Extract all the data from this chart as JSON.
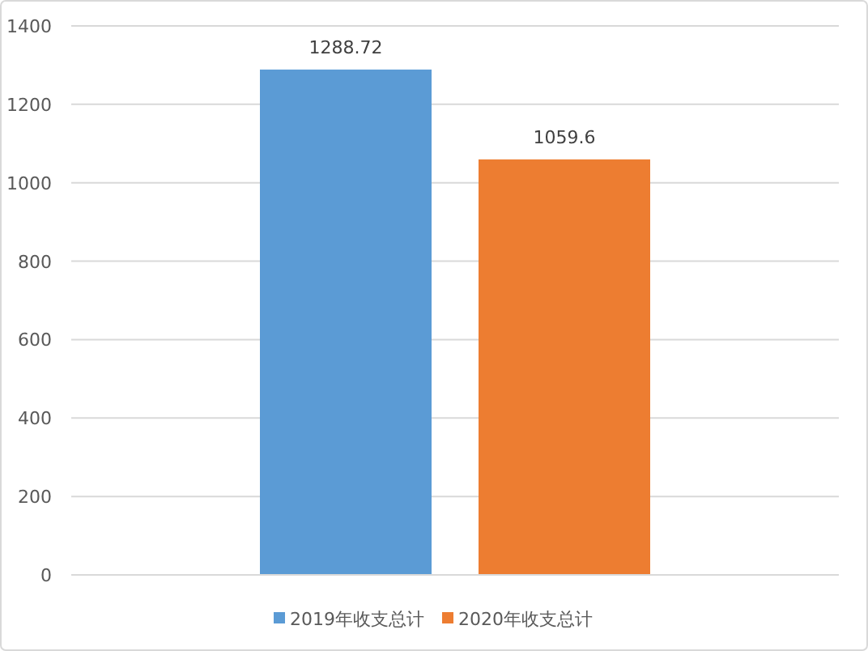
{
  "chart_data": {
    "type": "bar",
    "categories": [
      null
    ],
    "series": [
      {
        "name": "2019年收支总计",
        "color": "#5b9bd5",
        "values": [
          1288.72
        ]
      },
      {
        "name": "2020年收支总计",
        "color": "#ed7d31",
        "values": [
          1059.6
        ]
      }
    ],
    "ylim": [
      0,
      1400
    ],
    "yticks": [
      0,
      200,
      400,
      600,
      800,
      1000,
      1200,
      1400
    ],
    "grid": "y",
    "legend": "bottom",
    "data_labels": true
  }
}
